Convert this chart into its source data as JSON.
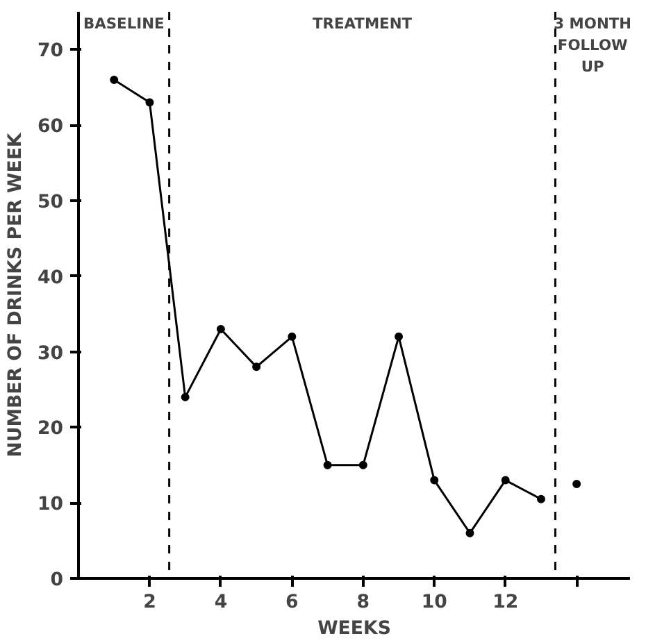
{
  "chart_data": {
    "type": "line",
    "xlabel": "WEEKS",
    "ylabel": "NUMBER OF DRINKS PER WEEK",
    "xlim": [
      0,
      15.5
    ],
    "ylim": [
      0,
      75
    ],
    "xticks": [
      2,
      4,
      6,
      8,
      10,
      12,
      {
        "value": 14,
        "label": null
      }
    ],
    "yticks": [
      0,
      10,
      20,
      30,
      40,
      50,
      60,
      70
    ],
    "series": [
      {
        "color": "#000000",
        "x": [
          1,
          2,
          3,
          4,
          5,
          6,
          7,
          8,
          9,
          10,
          11,
          12,
          13
        ],
        "values": [
          66,
          63,
          24,
          33,
          28,
          32,
          15,
          15,
          32,
          13,
          6,
          13,
          10.5
        ]
      },
      {
        "type": "scatter",
        "color": "#000000",
        "x": [
          14
        ],
        "values": [
          12.5
        ]
      }
    ],
    "marker": "circle",
    "line_style": "solid",
    "grid": false,
    "ref_lines": [
      {
        "axis": "x",
        "value": 2.55,
        "line_style": "dashed",
        "color": "#000000"
      },
      {
        "axis": "x",
        "value": 13.4,
        "line_style": "dashed",
        "color": "#000000"
      }
    ],
    "annotations": [
      "BASELINE",
      "TREATMENT",
      "3 MONTH\nFOLLOW\nUP"
    ]
  }
}
